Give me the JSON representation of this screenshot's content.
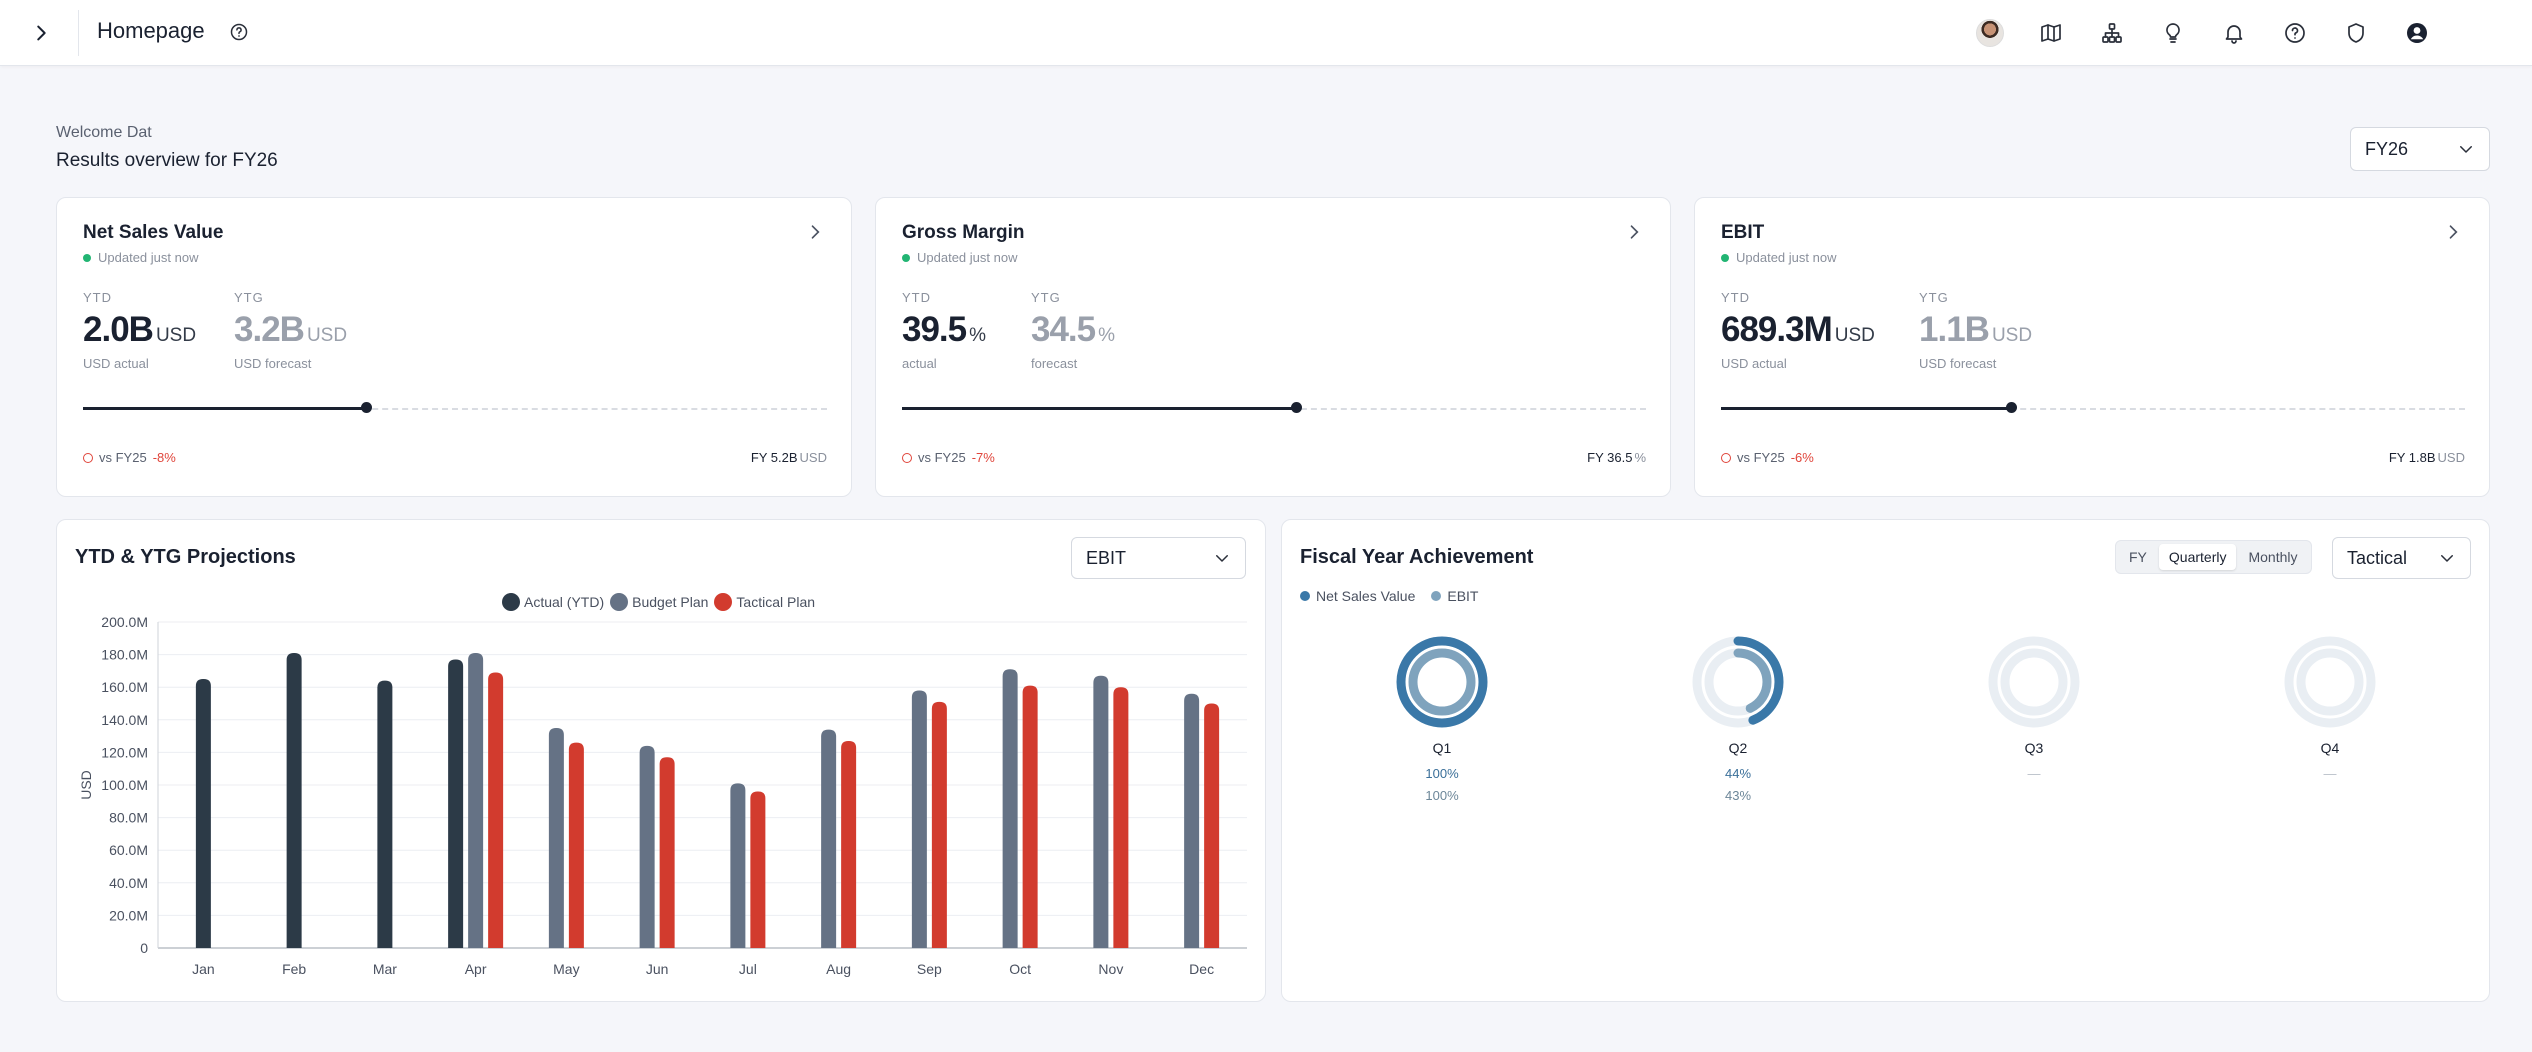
{
  "header": {
    "title": "Homepage"
  },
  "welcome": {
    "greeting": "Welcome Dat",
    "subtitle": "Results overview for FY26",
    "fy_selected": "FY26"
  },
  "kpis": [
    {
      "title": "Net Sales Value",
      "updated": "Updated just now",
      "ytd_label": "YTD",
      "ytd_value": "2.0B",
      "ytd_unit": "USD",
      "ytd_sub": "USD actual",
      "ytg_label": "YTG",
      "ytg_value": "3.2B",
      "ytg_unit": "USD",
      "ytg_sub": "USD forecast",
      "progress": 0.38,
      "vs_label": "vs FY25",
      "vs_value": "-8%",
      "fy_total": "FY 5.2B",
      "fy_unit": "USD"
    },
    {
      "title": "Gross Margin",
      "updated": "Updated just now",
      "ytd_label": "YTD",
      "ytd_value": "39.5",
      "ytd_unit": "%",
      "ytd_sub": "actual",
      "ytg_label": "YTG",
      "ytg_value": "34.5",
      "ytg_unit": "%",
      "ytg_sub": "forecast",
      "progress": 0.53,
      "vs_label": "vs FY25",
      "vs_value": "-7%",
      "fy_total": "FY 36.5",
      "fy_unit": "%"
    },
    {
      "title": "EBIT",
      "updated": "Updated just now",
      "ytd_label": "YTD",
      "ytd_value": "689.3M",
      "ytd_unit": "USD",
      "ytd_sub": "USD actual",
      "ytg_label": "YTG",
      "ytg_value": "1.1B",
      "ytg_unit": "USD",
      "ytg_sub": "USD forecast",
      "progress": 0.39,
      "vs_label": "vs FY25",
      "vs_value": "-6%",
      "fy_total": "FY 1.8B",
      "fy_unit": "USD"
    }
  ],
  "projections": {
    "title": "YTD & YTG Projections",
    "metric_selected": "EBIT"
  },
  "achievement": {
    "title": "Fiscal Year Achievement",
    "period_options": [
      "FY",
      "Quarterly",
      "Monthly"
    ],
    "period_selected": "Quarterly",
    "plan_selected": "Tactical",
    "legend": [
      {
        "name": "Net Sales Value",
        "color": "#3a78a8"
      },
      {
        "name": "EBIT",
        "color": "#7fa3bd"
      }
    ],
    "quarters": [
      {
        "name": "Q1",
        "nsv_pct": "100%",
        "ebit_pct": "100%",
        "nsv": 1.0,
        "ebit": 1.0
      },
      {
        "name": "Q2",
        "nsv_pct": "44%",
        "ebit_pct": "43%",
        "nsv": 0.44,
        "ebit": 0.43
      },
      {
        "name": "Q3",
        "nsv_pct": "—",
        "ebit_pct": "",
        "nsv": 0,
        "ebit": 0
      },
      {
        "name": "Q4",
        "nsv_pct": "—",
        "ebit_pct": "",
        "nsv": 0,
        "ebit": 0
      }
    ]
  },
  "colors": {
    "actual": "#2c3a47",
    "budget": "#657285",
    "tactical": "#d23b2e",
    "accent_green": "#22b573",
    "negative": "#e0453b"
  },
  "chart_data": {
    "type": "bar",
    "ylabel": "USD",
    "ylim": [
      0,
      200
    ],
    "y_unit_suffix": "M",
    "yticks": [
      "0",
      "20.0M",
      "40.0M",
      "60.0M",
      "80.0M",
      "100.0M",
      "120.0M",
      "140.0M",
      "160.0M",
      "180.0M",
      "200.0M"
    ],
    "categories": [
      "Jan",
      "Feb",
      "Mar",
      "Apr",
      "May",
      "Jun",
      "Jul",
      "Aug",
      "Sep",
      "Oct",
      "Nov",
      "Dec"
    ],
    "legend_position": "top-center",
    "grid": true,
    "series": [
      {
        "name": "Actual (YTD)",
        "color": "#2c3a47",
        "values": [
          165,
          181,
          164,
          177,
          null,
          null,
          null,
          null,
          null,
          null,
          null,
          null
        ]
      },
      {
        "name": "Budget Plan",
        "color": "#657285",
        "values": [
          null,
          null,
          null,
          181,
          135,
          124,
          101,
          134,
          158,
          171,
          167,
          156
        ]
      },
      {
        "name": "Tactical Plan",
        "color": "#d23b2e",
        "values": [
          null,
          null,
          null,
          169,
          126,
          117,
          96,
          127,
          151,
          161,
          160,
          150
        ]
      }
    ]
  }
}
